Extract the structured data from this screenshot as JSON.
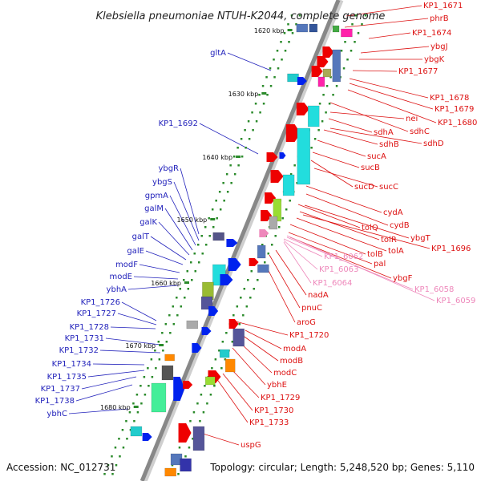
{
  "title": "Klebsiella pneumoniae NTUH-K2044, complete genome",
  "footer": {
    "accession": "Accession: NC_012731",
    "summary": "Topology: circular; Length: 5,248,520 bp; Genes: 5,110"
  },
  "colors": {
    "forward_label": "#2222bb",
    "reverse_label": "#dd1111",
    "other_label": "#ee88bb",
    "backbone": "#888888",
    "tick": "#2a8a2a",
    "cds": "#0022ee",
    "gene_red": "#ee0000"
  },
  "ruler": [
    {
      "label": "1620 kbp"
    },
    {
      "label": "1630 kbp"
    },
    {
      "label": "1640 kbp"
    },
    {
      "label": "1650 kbp"
    },
    {
      "label": "1660 kbp"
    },
    {
      "label": "1670 kbp"
    },
    {
      "label": "1680 kbp"
    }
  ],
  "left_labels": [
    "gltA",
    "KP1_1692",
    "ybgR",
    "ybgS",
    "gpmA",
    "galM",
    "galK",
    "galT",
    "galE",
    "modF",
    "modE",
    "ybhA",
    "KP1_1726",
    "KP1_1727",
    "KP1_1728",
    "KP1_1731",
    "KP1_1732",
    "KP1_1734",
    "KP1_1735",
    "KP1_1737",
    "KP1_1738",
    "ybhC"
  ],
  "right_labels": [
    "KP1_1671",
    "phrB",
    "KP1_1674",
    "ybgJ",
    "ybgK",
    "KP1_1677",
    "KP1_1678",
    "KP1_1679",
    "KP1_1680",
    "nei",
    "sdhC",
    "sdhA",
    "sdhD",
    "sdhB",
    "sucA",
    "sucB",
    "sucD",
    "sucC",
    "cydA",
    "cydB",
    "tolQ",
    "ybgT",
    "tolR",
    "KP1_1696",
    "tolA",
    "tolB",
    "pal",
    "ybgF",
    "nadA",
    "pnuC",
    "aroG",
    "KP1_1720",
    "modA",
    "modB",
    "modC",
    "ybhE",
    "KP1_1729",
    "KP1_1730",
    "KP1_1733",
    "uspG"
  ],
  "pink_labels": [
    "KP1_6062",
    "KP1_6063",
    "KP1_6064",
    "KP1_6058",
    "KP1_6059"
  ]
}
